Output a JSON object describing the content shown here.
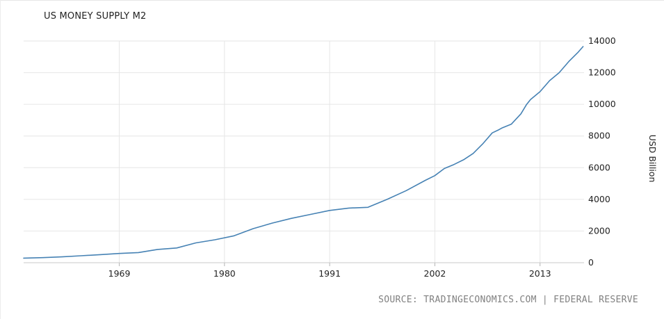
{
  "chart_data": {
    "type": "line",
    "title": "US MONEY SUPPLY M2",
    "ylabel": "USD Billion",
    "xlabel": "",
    "source": "SOURCE: TRADINGECONOMICS.COM | FEDERAL RESERVE",
    "x_ticks": [
      "1969",
      "1980",
      "1991",
      "2002",
      "2013"
    ],
    "x_tick_values": [
      1969,
      1980,
      1991,
      2002,
      2013
    ],
    "y_ticks": [
      "0",
      "2000",
      "4000",
      "6000",
      "8000",
      "10000",
      "12000",
      "14000"
    ],
    "y_tick_values": [
      0,
      2000,
      4000,
      6000,
      8000,
      10000,
      12000,
      14000
    ],
    "xlim": [
      1959,
      2017.6
    ],
    "ylim": [
      0,
      14000
    ],
    "grid": true,
    "line_color": "#4682b4",
    "series": [
      {
        "x": [
          1959,
          1961,
          1963,
          1965,
          1967,
          1969,
          1971,
          1973,
          1975,
          1977,
          1979,
          1981,
          1983,
          1985,
          1987,
          1989,
          1991,
          1993,
          1995,
          1997,
          1999,
          2001,
          2002,
          2003,
          2004,
          2005,
          2006,
          2007,
          2008,
          2008.7,
          2009,
          2010,
          2011,
          2011.6,
          2012,
          2013,
          2014,
          2015,
          2016,
          2017,
          2017.5
        ],
        "y": [
          290,
          320,
          370,
          440,
          510,
          585,
          640,
          840,
          930,
          1250,
          1450,
          1700,
          2150,
          2500,
          2800,
          3050,
          3300,
          3450,
          3500,
          4000,
          4550,
          5200,
          5500,
          5950,
          6200,
          6500,
          6900,
          7500,
          8200,
          8400,
          8500,
          8750,
          9400,
          10000,
          10300,
          10800,
          11500,
          12000,
          12700,
          13300,
          13650
        ]
      }
    ]
  }
}
